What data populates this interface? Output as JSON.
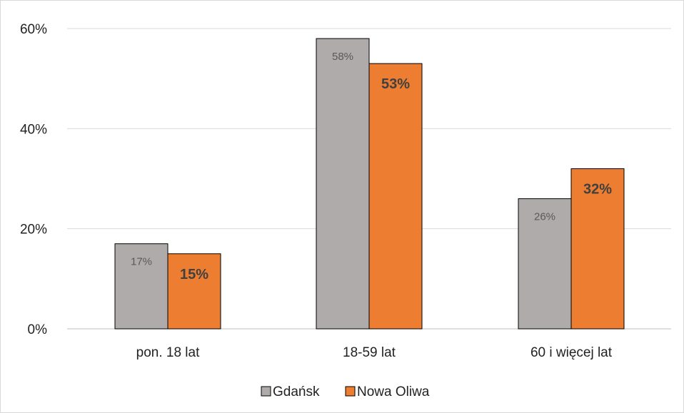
{
  "chart_data": {
    "type": "bar",
    "categories": [
      "pon. 18 lat",
      "18-59 lat",
      "60 i więcej lat"
    ],
    "series": [
      {
        "name": "Gdańsk",
        "values": [
          17,
          58,
          26
        ],
        "labels": [
          "17%",
          "58%",
          "26%"
        ],
        "color": "#afabab"
      },
      {
        "name": "Nowa Oliwa",
        "values": [
          15,
          53,
          32
        ],
        "labels": [
          "15%",
          "53%",
          "32%"
        ],
        "color": "#ed7d31"
      }
    ],
    "ylim": [
      0,
      60
    ],
    "yticks": [
      0,
      20,
      40,
      60
    ],
    "ytick_labels": [
      "0%",
      "20%",
      "40%",
      "60%"
    ],
    "title": "",
    "xlabel": "",
    "ylabel": "",
    "grid": true,
    "legend_position": "bottom"
  }
}
